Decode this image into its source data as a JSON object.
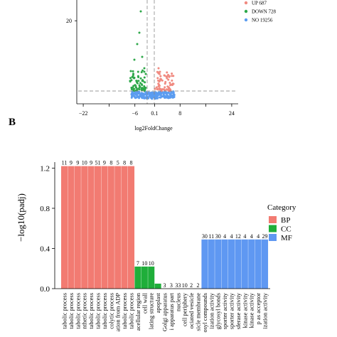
{
  "panel_b_letter": "B",
  "chart_data": [
    {
      "type": "scatter",
      "xlabel": "log2FoldChange",
      "ylabel": "",
      "xticks": [
        -22,
        -14,
        -6,
        0.1,
        8,
        16,
        24
      ],
      "xtick_labels": [
        "−22",
        "",
        "−6",
        "0.1",
        "8",
        "",
        "24"
      ],
      "ylim": [
        0,
        25
      ],
      "yticks": [
        20
      ],
      "ytick_labels": [
        "20"
      ],
      "xlim": [
        -24,
        26
      ],
      "threshold_x": [
        -1,
        1
      ],
      "threshold_y": 1.3,
      "series": [
        {
          "name": "UP 687",
          "color": "#f08a80"
        },
        {
          "name": "DOWN 728",
          "color": "#2ea84a"
        },
        {
          "name": "NO 19256",
          "color": "#5b9cf0"
        }
      ]
    },
    {
      "type": "bar",
      "ylabel": "−log10(padj)",
      "ylim": [
        0,
        1.26
      ],
      "yticks": [
        0.0,
        0.4,
        0.8,
        1.2
      ],
      "ytick_labels": [
        "0.0",
        "0.4",
        "0.8",
        "1.2"
      ],
      "legend_title": "Category",
      "legend_placement": "right",
      "series": [
        {
          "name": "BP",
          "color": "#f27b72"
        },
        {
          "name": "CC",
          "color": "#1fae3a"
        },
        {
          "name": "MF",
          "color": "#5f98f2"
        }
      ],
      "bars": [
        {
          "category": "tabolic process",
          "group": "BP",
          "value": 1.22,
          "label": "11"
        },
        {
          "category": "tabolic process",
          "group": "BP",
          "value": 1.22,
          "label": "9"
        },
        {
          "category": "tabolic process",
          "group": "BP",
          "value": 1.22,
          "label": "9"
        },
        {
          "category": "nthetic process",
          "group": "BP",
          "value": 1.22,
          "label": "10"
        },
        {
          "category": "tabolic process",
          "group": "BP",
          "value": 1.22,
          "label": "9"
        },
        {
          "category": "tabolic process",
          "group": "BP",
          "value": 1.22,
          "label": "51"
        },
        {
          "category": "tabolic process",
          "group": "BP",
          "value": 1.22,
          "label": "9"
        },
        {
          "category": "colytic process",
          "group": "BP",
          "value": 1.22,
          "label": "8"
        },
        {
          "category": "ation from ADP",
          "group": "BP",
          "value": 1.22,
          "label": "5"
        },
        {
          "category": "tabolic process",
          "group": "BP",
          "value": 1.22,
          "label": "8"
        },
        {
          "category": "tabolic process",
          "group": "BP",
          "value": 1.22,
          "label": "8"
        },
        {
          "category": "acellular region",
          "group": "CC",
          "value": 0.22,
          "label": "7"
        },
        {
          "category": "cell wall",
          "group": "CC",
          "value": 0.22,
          "label": "10"
        },
        {
          "category": "lating structure",
          "group": "CC",
          "value": 0.22,
          "label": "10"
        },
        {
          "category": "apoplast",
          "group": "CC",
          "value": 0.05,
          "label": ""
        },
        {
          "category": "Golgi apparatus",
          "group": "CC",
          "value": 0.0,
          "label": "3"
        },
        {
          "category": "i apparatus part",
          "group": "CC",
          "value": 0.0,
          "label": "3"
        },
        {
          "category": "nucleus",
          "group": "CC",
          "value": 0.0,
          "label": "33"
        },
        {
          "category": "cell periphery",
          "group": "CC",
          "value": 0.0,
          "label": "10"
        },
        {
          "category": "ociated vesicle",
          "group": "CC",
          "value": 0.0,
          "label": "2"
        },
        {
          "category": "sicle membrane",
          "group": "CC",
          "value": 0.0,
          "label": "2"
        },
        {
          "category": "osyl compounds",
          "group": "MF",
          "value": 0.49,
          "label": "30"
        },
        {
          "category": "ization activity",
          "group": "MF",
          "value": 0.49,
          "label": "11"
        },
        {
          "category": "glycosyl bonds",
          "group": "MF",
          "value": 0.49,
          "label": "30"
        },
        {
          "category": "sporter activity",
          "group": "MF",
          "value": 0.49,
          "label": "4"
        },
        {
          "category": "sporter activity",
          "group": "MF",
          "value": 0.49,
          "label": "4"
        },
        {
          "category": "sferase activity",
          "group": "MF",
          "value": 0.49,
          "label": "12"
        },
        {
          "category": "kinase activity",
          "group": "MF",
          "value": 0.49,
          "label": "4"
        },
        {
          "category": "kinase activity",
          "group": "MF",
          "value": 0.49,
          "label": "4"
        },
        {
          "category": "p as acceptor",
          "group": "MF",
          "value": 0.49,
          "label": "4"
        },
        {
          "category": "ization activity",
          "group": "MF",
          "value": 0.49,
          "label": "29"
        }
      ]
    }
  ]
}
